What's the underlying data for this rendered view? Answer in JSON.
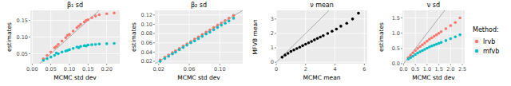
{
  "chart_data": [
    {
      "type": "scatter",
      "title": "β₁ sd",
      "x_label": "MCMC std dev",
      "y_label": "estimates",
      "grid": true,
      "xlim": [
        -0.005,
        0.235
      ],
      "ylim": [
        0.02,
        0.18
      ],
      "xticks": [
        {
          "value": 0,
          "label": "0.00"
        },
        {
          "value": 0.05,
          "label": "0.05"
        },
        {
          "value": 0.1,
          "label": "0.10"
        },
        {
          "value": 0.15,
          "label": "0.15"
        },
        {
          "value": 0.2,
          "label": "0.20"
        }
      ],
      "yticks": [
        {
          "value": 0.05,
          "label": "0.05"
        },
        {
          "value": 0.1,
          "label": "0.10"
        },
        {
          "value": 0.15,
          "label": "0.15"
        }
      ],
      "series": [
        {
          "name": "lrvb",
          "color": "#F8766D",
          "x": [
            0.03,
            0.04,
            0.05,
            0.06,
            0.065,
            0.07,
            0.08,
            0.09,
            0.095,
            0.1,
            0.11,
            0.12,
            0.125,
            0.13,
            0.14,
            0.145,
            0.15,
            0.16,
            0.17,
            0.18,
            0.2,
            0.22
          ],
          "values": [
            0.035,
            0.045,
            0.055,
            0.068,
            0.072,
            0.078,
            0.088,
            0.098,
            0.105,
            0.108,
            0.118,
            0.128,
            0.133,
            0.138,
            0.145,
            0.15,
            0.152,
            0.158,
            0.163,
            0.167,
            0.17,
            0.172
          ]
        },
        {
          "name": "mfvb",
          "color": "#00BFC4",
          "x": [
            0.03,
            0.04,
            0.05,
            0.06,
            0.065,
            0.07,
            0.08,
            0.09,
            0.095,
            0.1,
            0.11,
            0.12,
            0.125,
            0.13,
            0.14,
            0.145,
            0.15,
            0.16,
            0.17,
            0.18,
            0.2,
            0.22
          ],
          "values": [
            0.03,
            0.035,
            0.04,
            0.045,
            0.052,
            0.05,
            0.055,
            0.058,
            0.06,
            0.062,
            0.066,
            0.07,
            0.068,
            0.072,
            0.074,
            0.073,
            0.076,
            0.077,
            0.078,
            0.079,
            0.08,
            0.081
          ]
        }
      ]
    },
    {
      "type": "scatter",
      "title": "β₂ sd",
      "x_label": "MCMC std dev",
      "y_label": "estimates",
      "grid": true,
      "xlim": [
        0.015,
        0.13
      ],
      "ylim": [
        0.015,
        0.13
      ],
      "xticks": [
        {
          "value": 0.02,
          "label": "0.02"
        },
        {
          "value": 0.06,
          "label": "0.06"
        },
        {
          "value": 0.1,
          "label": "0.10"
        }
      ],
      "yticks": [
        {
          "value": 0.02,
          "label": "0.02"
        },
        {
          "value": 0.04,
          "label": "0.04"
        },
        {
          "value": 0.06,
          "label": "0.06"
        },
        {
          "value": 0.08,
          "label": "0.08"
        },
        {
          "value": 0.1,
          "label": "0.10"
        },
        {
          "value": 0.12,
          "label": "0.12"
        }
      ],
      "series": [
        {
          "name": "lrvb",
          "color": "#F8766D",
          "x": [
            0.022,
            0.028,
            0.033,
            0.038,
            0.042,
            0.047,
            0.052,
            0.057,
            0.062,
            0.067,
            0.072,
            0.077,
            0.082,
            0.087,
            0.092,
            0.097,
            0.102,
            0.107,
            0.112,
            0.118
          ],
          "values": [
            0.023,
            0.029,
            0.034,
            0.039,
            0.043,
            0.048,
            0.053,
            0.058,
            0.063,
            0.068,
            0.073,
            0.078,
            0.083,
            0.088,
            0.093,
            0.098,
            0.103,
            0.108,
            0.113,
            0.119
          ]
        },
        {
          "name": "mfvb",
          "color": "#00BFC4",
          "x": [
            0.022,
            0.028,
            0.033,
            0.038,
            0.042,
            0.047,
            0.052,
            0.057,
            0.062,
            0.067,
            0.072,
            0.077,
            0.082,
            0.087,
            0.092,
            0.097,
            0.102,
            0.107,
            0.112,
            0.118
          ],
          "values": [
            0.02,
            0.026,
            0.031,
            0.036,
            0.04,
            0.045,
            0.05,
            0.055,
            0.06,
            0.064,
            0.069,
            0.074,
            0.079,
            0.083,
            0.088,
            0.093,
            0.098,
            0.102,
            0.107,
            0.113
          ]
        }
      ]
    },
    {
      "type": "scatter",
      "title": "ν mean",
      "x_label": "MCMC mean",
      "y_label": "MFVB mean",
      "grid": true,
      "xlim": [
        0,
        6.2
      ],
      "ylim": [
        -0.1,
        3.6
      ],
      "xticks": [
        0,
        2,
        4,
        6
      ],
      "yticks": [
        0,
        1,
        2,
        3
      ],
      "series": [
        {
          "color": "#000000",
          "x": [
            0.4,
            0.6,
            0.8,
            1.0,
            1.2,
            1.4,
            1.6,
            1.8,
            2.0,
            2.2,
            2.4,
            2.6,
            2.8,
            3.0,
            3.2,
            3.5,
            3.8,
            4.1,
            4.4,
            4.8,
            5.2,
            5.6
          ],
          "values": [
            0.35,
            0.5,
            0.62,
            0.75,
            0.85,
            0.95,
            1.05,
            1.15,
            1.25,
            1.35,
            1.45,
            1.55,
            1.65,
            1.75,
            1.85,
            2.0,
            2.15,
            2.3,
            2.5,
            2.7,
            3.0,
            3.4
          ]
        }
      ]
    },
    {
      "type": "scatter",
      "title": "ν sd",
      "x_label": "MCMC std dev",
      "y_label": "estimates",
      "grid": true,
      "legend": "right",
      "legend_title": "Method:",
      "xlim": [
        -0.05,
        2.6
      ],
      "ylim": [
        0,
        1.75
      ],
      "xticks": [
        {
          "value": 0,
          "label": "0.0"
        },
        0.5,
        {
          "value": 1,
          "label": "1.0"
        },
        1.5,
        {
          "value": 2,
          "label": "2.0"
        },
        2.5
      ],
      "yticks": [
        {
          "value": 0,
          "label": "0.0"
        },
        0.5,
        {
          "value": 1,
          "label": "1.0"
        },
        1.5
      ],
      "series": [
        {
          "name": "lrvb",
          "color": "#F8766D",
          "x": [
            0.2,
            0.3,
            0.4,
            0.5,
            0.6,
            0.7,
            0.8,
            0.9,
            1.0,
            1.1,
            1.2,
            1.3,
            1.4,
            1.5,
            1.6,
            1.8,
            2.0,
            2.2,
            2.4
          ],
          "values": [
            0.2,
            0.28,
            0.36,
            0.43,
            0.5,
            0.56,
            0.62,
            0.68,
            0.74,
            0.8,
            0.85,
            0.9,
            0.95,
            1.0,
            1.05,
            1.15,
            1.25,
            1.35,
            1.5
          ]
        },
        {
          "name": "mfvb",
          "color": "#00BFC4",
          "x": [
            0.2,
            0.3,
            0.4,
            0.5,
            0.6,
            0.7,
            0.8,
            0.9,
            1.0,
            1.1,
            1.2,
            1.3,
            1.4,
            1.5,
            1.6,
            1.8,
            2.0,
            2.2,
            2.4
          ],
          "values": [
            0.15,
            0.2,
            0.25,
            0.3,
            0.35,
            0.39,
            0.43,
            0.47,
            0.51,
            0.55,
            0.58,
            0.61,
            0.64,
            0.67,
            0.7,
            0.76,
            0.82,
            0.88,
            0.95
          ]
        }
      ]
    }
  ]
}
